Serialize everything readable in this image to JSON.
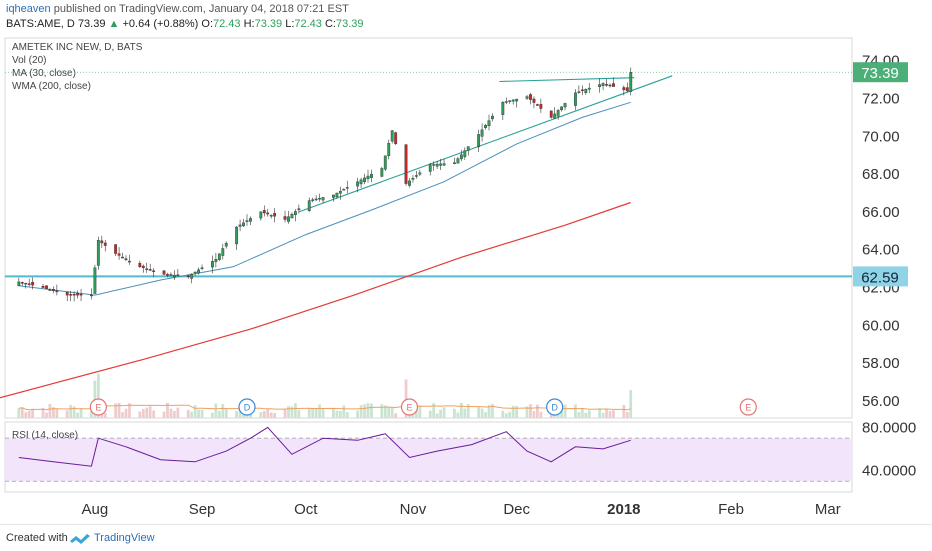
{
  "publisher": {
    "user": "iqheaven",
    "text": "published on TradingView.com, January 04, 2018 07:21 EST"
  },
  "quote": {
    "symbol": "BATS:AME, D",
    "last": "73.39",
    "arrow": "▲",
    "change": "+0.64 (+0.88%)",
    "o_label": "O:",
    "o": "72.43",
    "h_label": "H:",
    "h": "73.39",
    "l_label": "L:",
    "l": "72.43",
    "c_label": "C:",
    "c": "73.39"
  },
  "footer": {
    "created": "Created with",
    "brand": "TradingView"
  },
  "colors": {
    "up": "#2f9e5b",
    "down": "#c62828",
    "ma": "#4a90b8",
    "wma": "#e53935",
    "support": "#55b9cf",
    "trend": "#2aa198",
    "rsi_line": "#6a1b9a",
    "rsi_bg": "#f1e4fb",
    "vol_up": "#c9e4d1",
    "vol_down": "#efcccc",
    "vol_ma": "#f0a060"
  },
  "chart_data": {
    "type": "candlestick",
    "title": "AMETEK INC NEW, D, BATS",
    "indicators": [
      "Vol (20)",
      "MA (30, close)",
      "WMA (200, close)"
    ],
    "y_ticks": [
      "74.00",
      "72.00",
      "70.00",
      "68.00",
      "66.00",
      "64.00",
      "62.00",
      "60.00",
      "58.00",
      "56.00"
    ],
    "y_tick_values": [
      74,
      72,
      70,
      68,
      66,
      64,
      62,
      60,
      58,
      56
    ],
    "ylim": [
      55.1,
      75.2
    ],
    "x_ticks": [
      "Aug",
      "Sep",
      "Oct",
      "Nov",
      "Dec",
      "2018",
      "Feb",
      "Mar"
    ],
    "x_tick_dates": [
      "2017-08-01",
      "2017-09-01",
      "2017-10-01",
      "2017-11-01",
      "2017-12-01",
      "2018-01-01",
      "2018-02-01",
      "2018-03-01"
    ],
    "last_price": {
      "label": "73.39",
      "value": 73.39
    },
    "support_level": {
      "label": "62.59",
      "value": 62.59
    },
    "events": [
      {
        "label": "E",
        "date": "2017-08-02"
      },
      {
        "label": "D",
        "date": "2017-09-14"
      },
      {
        "label": "E",
        "date": "2017-10-31"
      },
      {
        "label": "D",
        "date": "2017-12-12"
      },
      {
        "label": "E",
        "date": "2018-02-06"
      }
    ],
    "close_path": [
      [
        "2017-07-10",
        62.3
      ],
      [
        "2017-07-17",
        62.0
      ],
      [
        "2017-07-24",
        61.6
      ],
      [
        "2017-07-31",
        61.6
      ],
      [
        "2017-08-02",
        64.5
      ],
      [
        "2017-08-07",
        63.8
      ],
      [
        "2017-08-14",
        63.1
      ],
      [
        "2017-08-21",
        62.7
      ],
      [
        "2017-08-28",
        62.6
      ],
      [
        "2017-09-05",
        63.5
      ],
      [
        "2017-09-11",
        65.2
      ],
      [
        "2017-09-18",
        66.0
      ],
      [
        "2017-09-25",
        65.6
      ],
      [
        "2017-10-02",
        66.6
      ],
      [
        "2017-10-09",
        66.9
      ],
      [
        "2017-10-16",
        67.6
      ],
      [
        "2017-10-23",
        68.3
      ],
      [
        "2017-10-26",
        70.3
      ],
      [
        "2017-10-30",
        67.5
      ],
      [
        "2017-11-06",
        68.5
      ],
      [
        "2017-11-13",
        68.6
      ],
      [
        "2017-11-20",
        70.1
      ],
      [
        "2017-11-27",
        71.8
      ],
      [
        "2017-12-04",
        72.1
      ],
      [
        "2017-12-11",
        71.0
      ],
      [
        "2017-12-18",
        72.3
      ],
      [
        "2017-12-26",
        72.8
      ],
      [
        "2018-01-02",
        72.4
      ],
      [
        "2018-01-03",
        73.39
      ]
    ],
    "ma_30": [
      [
        "2017-07-10",
        62.1
      ],
      [
        "2017-08-01",
        61.6
      ],
      [
        "2017-08-20",
        62.4
      ],
      [
        "2017-09-10",
        63.1
      ],
      [
        "2017-10-01",
        64.8
      ],
      [
        "2017-10-20",
        66.1
      ],
      [
        "2017-11-10",
        67.6
      ],
      [
        "2017-12-01",
        69.6
      ],
      [
        "2017-12-20",
        71.0
      ],
      [
        "2018-01-03",
        71.8
      ]
    ],
    "wma_200": [
      [
        "2017-07-01",
        56.0
      ],
      [
        "2017-08-15",
        58.2
      ],
      [
        "2017-09-15",
        59.8
      ],
      [
        "2017-10-15",
        61.6
      ],
      [
        "2017-11-15",
        63.6
      ],
      [
        "2017-12-15",
        65.3
      ],
      [
        "2018-01-03",
        66.5
      ]
    ],
    "trendlines": [
      {
        "from": [
          "2017-09-29",
          66.0
        ],
        "to": [
          "2018-01-15",
          73.2
        ]
      },
      {
        "from": [
          "2017-11-26",
          72.9
        ],
        "to": [
          "2018-01-04",
          73.1
        ]
      }
    ],
    "rsi": {
      "label": "RSI (14, close)",
      "y_ticks": [
        "80.0000",
        "40.0000"
      ],
      "y_tick_values": [
        80,
        40
      ],
      "levels": [
        70,
        30
      ],
      "ylim": [
        20,
        85
      ],
      "values": [
        [
          "2017-07-10",
          52
        ],
        [
          "2017-07-20",
          48
        ],
        [
          "2017-07-31",
          44
        ],
        [
          "2017-08-02",
          70
        ],
        [
          "2017-08-10",
          62
        ],
        [
          "2017-08-20",
          50
        ],
        [
          "2017-08-30",
          48
        ],
        [
          "2017-09-08",
          58
        ],
        [
          "2017-09-15",
          70
        ],
        [
          "2017-09-20",
          80
        ],
        [
          "2017-09-27",
          55
        ],
        [
          "2017-10-06",
          70
        ],
        [
          "2017-10-16",
          68
        ],
        [
          "2017-10-24",
          74
        ],
        [
          "2017-10-31",
          52
        ],
        [
          "2017-11-08",
          58
        ],
        [
          "2017-11-18",
          64
        ],
        [
          "2017-11-28",
          76
        ],
        [
          "2017-12-04",
          58
        ],
        [
          "2017-12-11",
          48
        ],
        [
          "2017-12-18",
          62
        ],
        [
          "2017-12-26",
          60
        ],
        [
          "2018-01-03",
          68
        ]
      ]
    }
  }
}
